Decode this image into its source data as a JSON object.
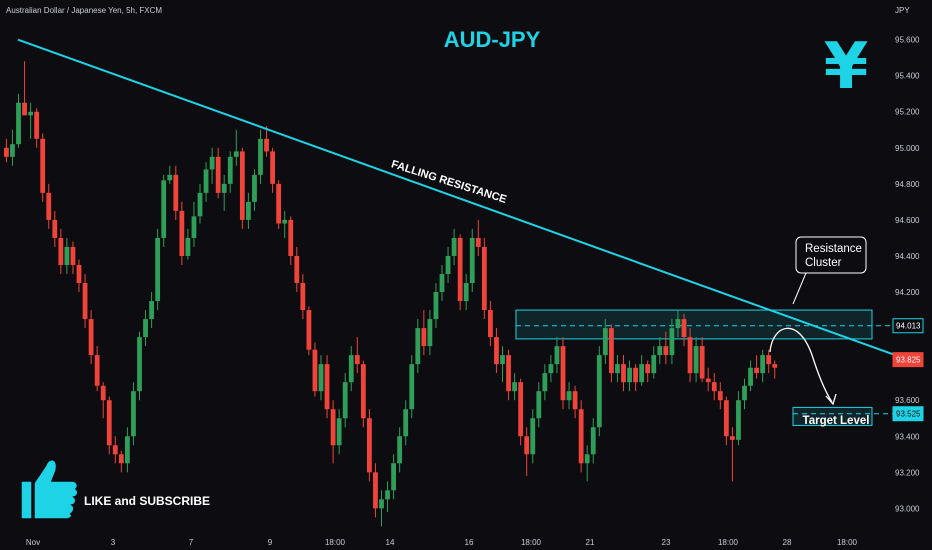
{
  "header": {
    "symbol_line": "Australian Dollar / Japanese Yen, 5h, FXCM"
  },
  "axis": {
    "currency": "JPY"
  },
  "title": "AUD-JPY",
  "icon": {
    "name": "yen-icon",
    "glyph": "¥",
    "color": "#1fd3e6"
  },
  "annotations": {
    "trendline_label": "FALLING RESISTANCE",
    "callout_line1": "Resistance",
    "callout_line2": "Cluster",
    "target_label": "Target Level"
  },
  "cta": {
    "text": "LIKE and SUBSCRIBE",
    "icon": "thumbs-up-icon"
  },
  "colors": {
    "up": "#2e9e58",
    "down": "#f0433a",
    "accent": "#1fd3e6",
    "background": "#0d0d11"
  },
  "chart_data": {
    "type": "candlestick",
    "y_ticks": [
      "95.600",
      "95.400",
      "95.200",
      "95.000",
      "94.800",
      "94.600",
      "94.400",
      "94.200",
      "93.600",
      "93.400",
      "93.200",
      "93.000"
    ],
    "ylim": [
      92.88,
      95.72
    ],
    "x_ticks": [
      "Nov",
      "3",
      "7",
      "9",
      "18:00",
      "14",
      "16",
      "18:00",
      "21",
      "23",
      "18:00",
      "28",
      "18:00"
    ],
    "price_labels": {
      "resistance": {
        "text": "94.013",
        "value": 94.013
      },
      "current": {
        "text": "93.825",
        "value": 93.825
      },
      "target": {
        "text": "93.525",
        "value": 93.525
      }
    },
    "resistance_zone": [
      93.94,
      94.1
    ],
    "target_zone": [
      93.46,
      93.56
    ],
    "trendline": [
      {
        "bar": 0,
        "value": 95.6
      },
      {
        "bar": 147,
        "value": 93.85
      }
    ],
    "candles": [
      [
        95.0,
        95.05,
        94.92,
        94.95
      ],
      [
        94.95,
        95.1,
        94.9,
        95.02
      ],
      [
        95.02,
        95.3,
        95.0,
        95.25
      ],
      [
        95.25,
        95.48,
        95.2,
        95.18
      ],
      [
        95.18,
        95.25,
        95.05,
        95.2
      ],
      [
        95.2,
        95.22,
        95.0,
        95.05
      ],
      [
        95.05,
        95.08,
        94.7,
        94.75
      ],
      [
        94.75,
        94.8,
        94.55,
        94.6
      ],
      [
        94.6,
        94.65,
        94.45,
        94.5
      ],
      [
        94.5,
        94.55,
        94.3,
        94.35
      ],
      [
        94.35,
        94.5,
        94.3,
        94.45
      ],
      [
        94.45,
        94.48,
        94.3,
        94.35
      ],
      [
        94.35,
        94.38,
        94.2,
        94.25
      ],
      [
        94.25,
        94.3,
        94.0,
        94.05
      ],
      [
        94.05,
        94.1,
        93.8,
        93.85
      ],
      [
        93.85,
        93.9,
        93.65,
        93.68
      ],
      [
        93.68,
        93.7,
        93.5,
        93.6
      ],
      [
        93.6,
        93.62,
        93.3,
        93.35
      ],
      [
        93.35,
        93.4,
        93.25,
        93.3
      ],
      [
        93.3,
        93.32,
        93.2,
        93.25
      ],
      [
        93.25,
        93.45,
        93.2,
        93.4
      ],
      [
        93.4,
        93.7,
        93.35,
        93.65
      ],
      [
        93.65,
        93.98,
        93.6,
        93.95
      ],
      [
        93.95,
        94.1,
        93.9,
        94.05
      ],
      [
        94.05,
        94.2,
        94.0,
        94.15
      ],
      [
        94.15,
        94.55,
        94.1,
        94.5
      ],
      [
        94.5,
        94.85,
        94.45,
        94.82
      ],
      [
        94.82,
        94.9,
        94.8,
        94.85
      ],
      [
        94.85,
        94.9,
        94.6,
        94.65
      ],
      [
        94.65,
        94.7,
        94.35,
        94.4
      ],
      [
        94.4,
        94.55,
        94.38,
        94.5
      ],
      [
        94.5,
        94.7,
        94.45,
        94.62
      ],
      [
        94.62,
        94.8,
        94.58,
        94.75
      ],
      [
        94.75,
        94.92,
        94.7,
        94.88
      ],
      [
        94.88,
        95.0,
        94.8,
        94.95
      ],
      [
        94.95,
        95.0,
        94.72,
        94.75
      ],
      [
        94.75,
        94.85,
        94.65,
        94.8
      ],
      [
        94.8,
        94.98,
        94.75,
        94.95
      ],
      [
        94.95,
        95.1,
        94.9,
        94.98
      ],
      [
        94.98,
        95.0,
        94.55,
        94.6
      ],
      [
        94.6,
        94.75,
        94.55,
        94.7
      ],
      [
        94.7,
        94.88,
        94.65,
        94.85
      ],
      [
        94.85,
        95.1,
        94.8,
        95.05
      ],
      [
        95.05,
        95.12,
        94.95,
        94.98
      ],
      [
        94.98,
        95.0,
        94.75,
        94.8
      ],
      [
        94.8,
        94.82,
        94.55,
        94.58
      ],
      [
        94.58,
        94.65,
        94.5,
        94.6
      ],
      [
        94.6,
        94.62,
        94.35,
        94.4
      ],
      [
        94.4,
        94.45,
        94.2,
        94.25
      ],
      [
        94.25,
        94.3,
        94.05,
        94.1
      ],
      [
        94.1,
        94.12,
        93.85,
        93.88
      ],
      [
        93.88,
        93.92,
        93.62,
        93.65
      ],
      [
        93.65,
        93.85,
        93.6,
        93.8
      ],
      [
        93.8,
        93.85,
        93.5,
        93.55
      ],
      [
        93.55,
        93.6,
        93.25,
        93.35
      ],
      [
        93.35,
        93.55,
        93.3,
        93.5
      ],
      [
        93.5,
        93.75,
        93.45,
        93.7
      ],
      [
        93.7,
        93.9,
        93.65,
        93.85
      ],
      [
        93.85,
        93.95,
        93.75,
        93.8
      ],
      [
        93.8,
        93.82,
        93.45,
        93.5
      ],
      [
        93.5,
        93.55,
        93.15,
        93.2
      ],
      [
        93.2,
        93.25,
        92.95,
        93.0
      ],
      [
        93.0,
        93.1,
        92.9,
        93.05
      ],
      [
        93.05,
        93.15,
        92.98,
        93.1
      ],
      [
        93.1,
        93.3,
        93.05,
        93.25
      ],
      [
        93.25,
        93.45,
        93.2,
        93.4
      ],
      [
        93.4,
        93.6,
        93.35,
        93.55
      ],
      [
        93.55,
        93.85,
        93.5,
        93.8
      ],
      [
        93.8,
        94.05,
        93.75,
        94.0
      ],
      [
        94.0,
        94.1,
        93.85,
        93.9
      ],
      [
        93.9,
        94.1,
        93.85,
        94.05
      ],
      [
        94.05,
        94.25,
        94.0,
        94.2
      ],
      [
        94.2,
        94.35,
        94.15,
        94.3
      ],
      [
        94.3,
        94.45,
        94.25,
        94.4
      ],
      [
        94.4,
        94.55,
        94.35,
        94.5
      ],
      [
        94.5,
        94.52,
        94.1,
        94.15
      ],
      [
        94.15,
        94.3,
        94.1,
        94.25
      ],
      [
        94.25,
        94.55,
        94.2,
        94.5
      ],
      [
        94.5,
        94.6,
        94.4,
        94.45
      ],
      [
        94.45,
        94.5,
        94.05,
        94.1
      ],
      [
        94.1,
        94.15,
        93.9,
        93.95
      ],
      [
        93.95,
        94.0,
        93.75,
        93.8
      ],
      [
        93.8,
        93.9,
        93.7,
        93.85
      ],
      [
        93.85,
        93.88,
        93.6,
        93.65
      ],
      [
        93.65,
        93.75,
        93.6,
        93.7
      ],
      [
        93.7,
        93.72,
        93.35,
        93.4
      ],
      [
        93.4,
        93.45,
        93.18,
        93.3
      ],
      [
        93.3,
        93.55,
        93.25,
        93.5
      ],
      [
        93.5,
        93.7,
        93.45,
        93.65
      ],
      [
        93.65,
        93.8,
        93.6,
        93.75
      ],
      [
        93.75,
        93.85,
        93.7,
        93.8
      ],
      [
        93.8,
        93.95,
        93.75,
        93.9
      ],
      [
        93.9,
        93.95,
        93.55,
        93.6
      ],
      [
        93.6,
        93.7,
        93.55,
        93.65
      ],
      [
        93.65,
        93.68,
        93.5,
        93.55
      ],
      [
        93.55,
        93.6,
        93.2,
        93.25
      ],
      [
        93.25,
        93.35,
        93.15,
        93.3
      ],
      [
        93.3,
        93.5,
        93.25,
        93.45
      ],
      [
        93.45,
        93.9,
        93.4,
        93.85
      ],
      [
        93.85,
        94.05,
        93.8,
        94.0
      ],
      [
        94.0,
        94.02,
        93.7,
        93.75
      ],
      [
        93.75,
        93.85,
        93.7,
        93.8
      ],
      [
        93.8,
        93.85,
        93.65,
        93.7
      ],
      [
        93.7,
        93.82,
        93.65,
        93.78
      ],
      [
        93.78,
        93.8,
        93.65,
        93.7
      ],
      [
        93.7,
        93.85,
        93.68,
        93.8
      ],
      [
        93.8,
        93.82,
        93.7,
        93.75
      ],
      [
        93.75,
        93.9,
        93.72,
        93.85
      ],
      [
        93.85,
        93.95,
        93.8,
        93.9
      ],
      [
        93.9,
        93.98,
        93.8,
        93.85
      ],
      [
        93.85,
        94.05,
        93.8,
        94.0
      ],
      [
        94.0,
        94.1,
        93.95,
        94.05
      ],
      [
        94.05,
        94.08,
        93.9,
        93.95
      ],
      [
        93.95,
        94.0,
        93.7,
        93.75
      ],
      [
        93.75,
        93.95,
        93.7,
        93.9
      ],
      [
        93.9,
        93.95,
        93.7,
        93.72
      ],
      [
        93.72,
        93.78,
        93.65,
        93.7
      ],
      [
        93.7,
        93.75,
        93.6,
        93.65
      ],
      [
        93.65,
        93.7,
        93.55,
        93.6
      ],
      [
        93.6,
        93.62,
        93.35,
        93.4
      ],
      [
        93.4,
        93.45,
        93.15,
        93.38
      ],
      [
        93.38,
        93.65,
        93.35,
        93.6
      ],
      [
        93.6,
        93.72,
        93.55,
        93.68
      ],
      [
        93.68,
        93.82,
        93.65,
        93.78
      ],
      [
        93.78,
        93.85,
        93.72,
        93.75
      ],
      [
        93.75,
        93.88,
        93.7,
        93.85
      ],
      [
        93.85,
        93.88,
        93.75,
        93.8
      ],
      [
        93.8,
        93.82,
        93.72,
        93.78
      ]
    ]
  }
}
